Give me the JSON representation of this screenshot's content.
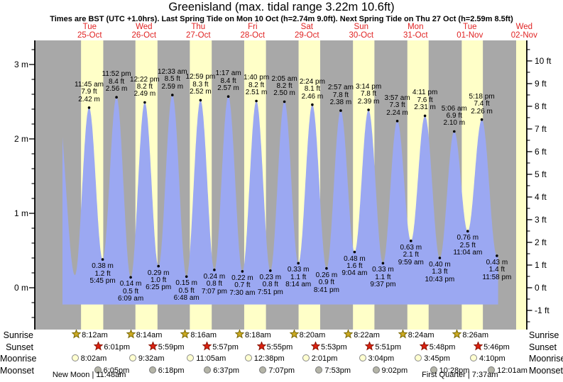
{
  "title": "Greenisland (max. tidal range 3.22m 10.6ft)",
  "subtitle": "Times are BST (UTC +1.0hrs). Last Spring Tide on Mon 10 Oct (h=2.74m 9.0ft). Next Spring Tide on Thu 27 Oct (h=2.59m 8.5ft)",
  "colors": {
    "night_band": "#a8a8a8",
    "daylight_band": "#ffffc8",
    "water": "#9ba8f2",
    "day_label_red": "#e02222",
    "axis_black": "#000000",
    "sunrise_star_fill": "#ccaa22",
    "sunrise_star_stroke": "#776600",
    "sunset_star_fill": "#dd2211",
    "sunset_star_stroke": "#881100",
    "moonrise_fill": "#ffffd0",
    "moonrise_stroke": "#888888",
    "moonset_fill": "#b5b5a8",
    "moonset_stroke": "#777777"
  },
  "chart_data": {
    "type": "area",
    "title": "Greenisland (max. tidal range 3.22m 10.6ft)",
    "x_axis_days": [
      {
        "dow": "Tue",
        "date": "25-Oct"
      },
      {
        "dow": "Wed",
        "date": "26-Oct"
      },
      {
        "dow": "Thu",
        "date": "27-Oct"
      },
      {
        "dow": "Fri",
        "date": "28-Oct"
      },
      {
        "dow": "Sat",
        "date": "29-Oct"
      },
      {
        "dow": "Sun",
        "date": "30-Oct"
      },
      {
        "dow": "Mon",
        "date": "31-Oct"
      },
      {
        "dow": "Tue",
        "date": "01-Nov"
      },
      {
        "dow": "Wed",
        "date": "02-Nov"
      }
    ],
    "y_axis_left": {
      "unit": "m",
      "ticks": [
        {
          "v": 0,
          "label": "0 m"
        },
        {
          "v": 1,
          "label": "1 m"
        },
        {
          "v": 2,
          "label": "2 m"
        },
        {
          "v": 3,
          "label": "3 m"
        }
      ],
      "minor_step_m": 0.2
    },
    "y_axis_right": {
      "unit": "ft",
      "ticks": [
        {
          "v": -1,
          "label": "-1 ft"
        },
        {
          "v": 0,
          "label": "0 ft"
        },
        {
          "v": 1,
          "label": "1 ft"
        },
        {
          "v": 2,
          "label": "2 ft"
        },
        {
          "v": 3,
          "label": "3 ft"
        },
        {
          "v": 4,
          "label": "4 ft"
        },
        {
          "v": 5,
          "label": "5 ft"
        },
        {
          "v": 6,
          "label": "6 ft"
        },
        {
          "v": 7,
          "label": "7 ft"
        },
        {
          "v": 8,
          "label": "8 ft"
        },
        {
          "v": 9,
          "label": "9 ft"
        },
        {
          "v": 10,
          "label": "10 ft"
        }
      ],
      "minor_step_ft": 0.5
    },
    "high_tides": [
      {
        "t": 11.75,
        "time": "11:45 am",
        "ft": "7.9 ft",
        "m": "2.42 m",
        "height_m": 2.42
      },
      {
        "t": 23.867,
        "time": "11:52 pm",
        "ft": "8.4 ft",
        "m": "2.56 m",
        "height_m": 2.56
      },
      {
        "t": 36.367,
        "time": "12:22 pm",
        "ft": "8.2 ft",
        "m": "2.49 m",
        "height_m": 2.49
      },
      {
        "t": 48.55,
        "time": "12:33 am",
        "ft": "8.5 ft",
        "m": "2.59 m",
        "height_m": 2.59
      },
      {
        "t": 60.983,
        "time": "12:59 pm",
        "ft": "8.3 ft",
        "m": "2.52 m",
        "height_m": 2.52
      },
      {
        "t": 73.283,
        "time": "1:17 am",
        "ft": "8.4 ft",
        "m": "2.57 m",
        "height_m": 2.57
      },
      {
        "t": 85.667,
        "time": "1:40 pm",
        "ft": "8.2 ft",
        "m": "2.51 m",
        "height_m": 2.51
      },
      {
        "t": 98.083,
        "time": "2:05 am",
        "ft": "8.2 ft",
        "m": "2.50 m",
        "height_m": 2.5
      },
      {
        "t": 110.4,
        "time": "2:24 pm",
        "ft": "8.1 ft",
        "m": "2.46 m",
        "height_m": 2.46
      },
      {
        "t": 122.95,
        "time": "2:57 am",
        "ft": "7.8 ft",
        "m": "2.38 m",
        "height_m": 2.38
      },
      {
        "t": 135.233,
        "time": "3:14 pm",
        "ft": "7.8 ft",
        "m": "2.39 m",
        "height_m": 2.39
      },
      {
        "t": 147.95,
        "time": "3:57 am",
        "ft": "7.3 ft",
        "m": "2.24 m",
        "height_m": 2.24
      },
      {
        "t": 160.183,
        "time": "4:11 pm",
        "ft": "7.6 ft",
        "m": "2.31 m",
        "height_m": 2.31
      },
      {
        "t": 173.1,
        "time": "5:06 am",
        "ft": "6.9 ft",
        "m": "2.10 m",
        "height_m": 2.1
      },
      {
        "t": 185.3,
        "time": "5:18 pm",
        "ft": "7.4 ft",
        "m": "2.26 m",
        "height_m": 2.26
      }
    ],
    "low_tides": [
      {
        "t": 17.75,
        "m": "0.38 m",
        "ft": "1.2 ft",
        "time": "5:45 pm",
        "height_m": 0.38
      },
      {
        "t": 30.15,
        "m": "0.14 m",
        "ft": "0.5 ft",
        "time": "6:09 am",
        "height_m": 0.14
      },
      {
        "t": 42.417,
        "m": "0.29 m",
        "ft": "1.0 ft",
        "time": "6:25 pm",
        "height_m": 0.29
      },
      {
        "t": 54.8,
        "m": "0.15 m",
        "ft": "0.5 ft",
        "time": "6:48 am",
        "height_m": 0.15
      },
      {
        "t": 67.117,
        "m": "0.24 m",
        "ft": "0.8 ft",
        "time": "7:07 pm",
        "height_m": 0.24
      },
      {
        "t": 79.5,
        "m": "0.22 m",
        "ft": "0.7 ft",
        "time": "7:30 am",
        "height_m": 0.22
      },
      {
        "t": 91.85,
        "m": "0.23 m",
        "ft": "0.8 ft",
        "time": "7:51 pm",
        "height_m": 0.23
      },
      {
        "t": 104.233,
        "m": "0.33 m",
        "ft": "1.1 ft",
        "time": "8:14 am",
        "height_m": 0.33
      },
      {
        "t": 116.683,
        "m": "0.26 m",
        "ft": "0.9 ft",
        "time": "8:41 pm",
        "height_m": 0.26
      },
      {
        "t": 129.067,
        "m": "0.48 m",
        "ft": "1.6 ft",
        "time": "9:04 am",
        "height_m": 0.48
      },
      {
        "t": 141.617,
        "m": "0.33 m",
        "ft": "1.1 ft",
        "time": "9:37 pm",
        "height_m": 0.33
      },
      {
        "t": 153.983,
        "m": "0.63 m",
        "ft": "2.1 ft",
        "time": "9:59 am",
        "height_m": 0.63
      },
      {
        "t": 166.717,
        "m": "0.40 m",
        "ft": "1.3 ft",
        "time": "10:43 pm",
        "height_m": 0.4
      },
      {
        "t": 179.067,
        "m": "0.76 m",
        "ft": "2.5 ft",
        "time": "11:04 am",
        "height_m": 0.76
      },
      {
        "t": 191.967,
        "m": "0.43 m",
        "ft": "1.4 ft",
        "time": "11:58 pm",
        "height_m": 0.43
      }
    ],
    "curve_edge_anchors": [
      {
        "t": -2.4,
        "height_m": 2.52
      },
      {
        "t": 5.5,
        "height_m": 0.17
      },
      {
        "t": 198.2,
        "height_m": 2.3
      }
    ],
    "curve_t_range": [
      0,
      192.5
    ],
    "fill_baseline_m": -0.225,
    "extra_daylight_t": [
      200.467,
      209.733
    ]
  },
  "almanac": {
    "rows": [
      {
        "id": "sunrise",
        "label": "Sunrise",
        "icon": "sunrise-star-icon",
        "entries": [
          {
            "time": "8:12am",
            "t": 8.2
          },
          {
            "time": "8:14am",
            "t": 32.233
          },
          {
            "time": "8:16am",
            "t": 56.267
          },
          {
            "time": "8:18am",
            "t": 80.3
          },
          {
            "time": "8:20am",
            "t": 104.333
          },
          {
            "time": "8:22am",
            "t": 128.367
          },
          {
            "time": "8:24am",
            "t": 152.4
          },
          {
            "time": "8:26am",
            "t": 176.433
          }
        ]
      },
      {
        "id": "sunset",
        "label": "Sunset",
        "icon": "sunset-star-icon",
        "entries": [
          {
            "time": "6:01pm",
            "t": 18.017
          },
          {
            "time": "5:59pm",
            "t": 41.983
          },
          {
            "time": "5:57pm",
            "t": 65.95
          },
          {
            "time": "5:55pm",
            "t": 89.917
          },
          {
            "time": "5:53pm",
            "t": 113.883
          },
          {
            "time": "5:51pm",
            "t": 137.85
          },
          {
            "time": "5:48pm",
            "t": 161.8
          },
          {
            "time": "5:46pm",
            "t": 185.767
          }
        ]
      },
      {
        "id": "moonrise",
        "label": "Moonrise",
        "icon": "moonrise-icon",
        "entries": [
          {
            "time": "8:02am",
            "t": 8.033
          },
          {
            "time": "9:32am",
            "t": 33.533
          },
          {
            "time": "11:05am",
            "t": 59.083
          },
          {
            "time": "12:38pm",
            "t": 84.633
          },
          {
            "time": "2:01pm",
            "t": 110.017
          },
          {
            "time": "3:04pm",
            "t": 135.067
          },
          {
            "time": "3:45pm",
            "t": 159.75
          },
          {
            "time": "4:10pm",
            "t": 184.167
          }
        ]
      },
      {
        "id": "moonset",
        "label": "Moonset",
        "icon": "moonset-icon",
        "entries": [
          {
            "time": "6:05pm",
            "t": 18.083
          },
          {
            "time": "6:18pm",
            "t": 42.3
          },
          {
            "time": "6:37pm",
            "t": 66.617
          },
          {
            "time": "7:07pm",
            "t": 91.117
          },
          {
            "time": "7:53pm",
            "t": 115.883
          },
          {
            "time": "9:02pm",
            "t": 141.033
          },
          {
            "time": "10:28pm",
            "t": 166.467
          },
          {
            "time": "12:01am",
            "t": 192.017
          }
        ]
      }
    ],
    "phases": [
      {
        "label": "New Moon | 11:48am",
        "t": 11.8
      },
      {
        "label": "First Quarter | 7:37am",
        "t": 175.617
      }
    ]
  }
}
